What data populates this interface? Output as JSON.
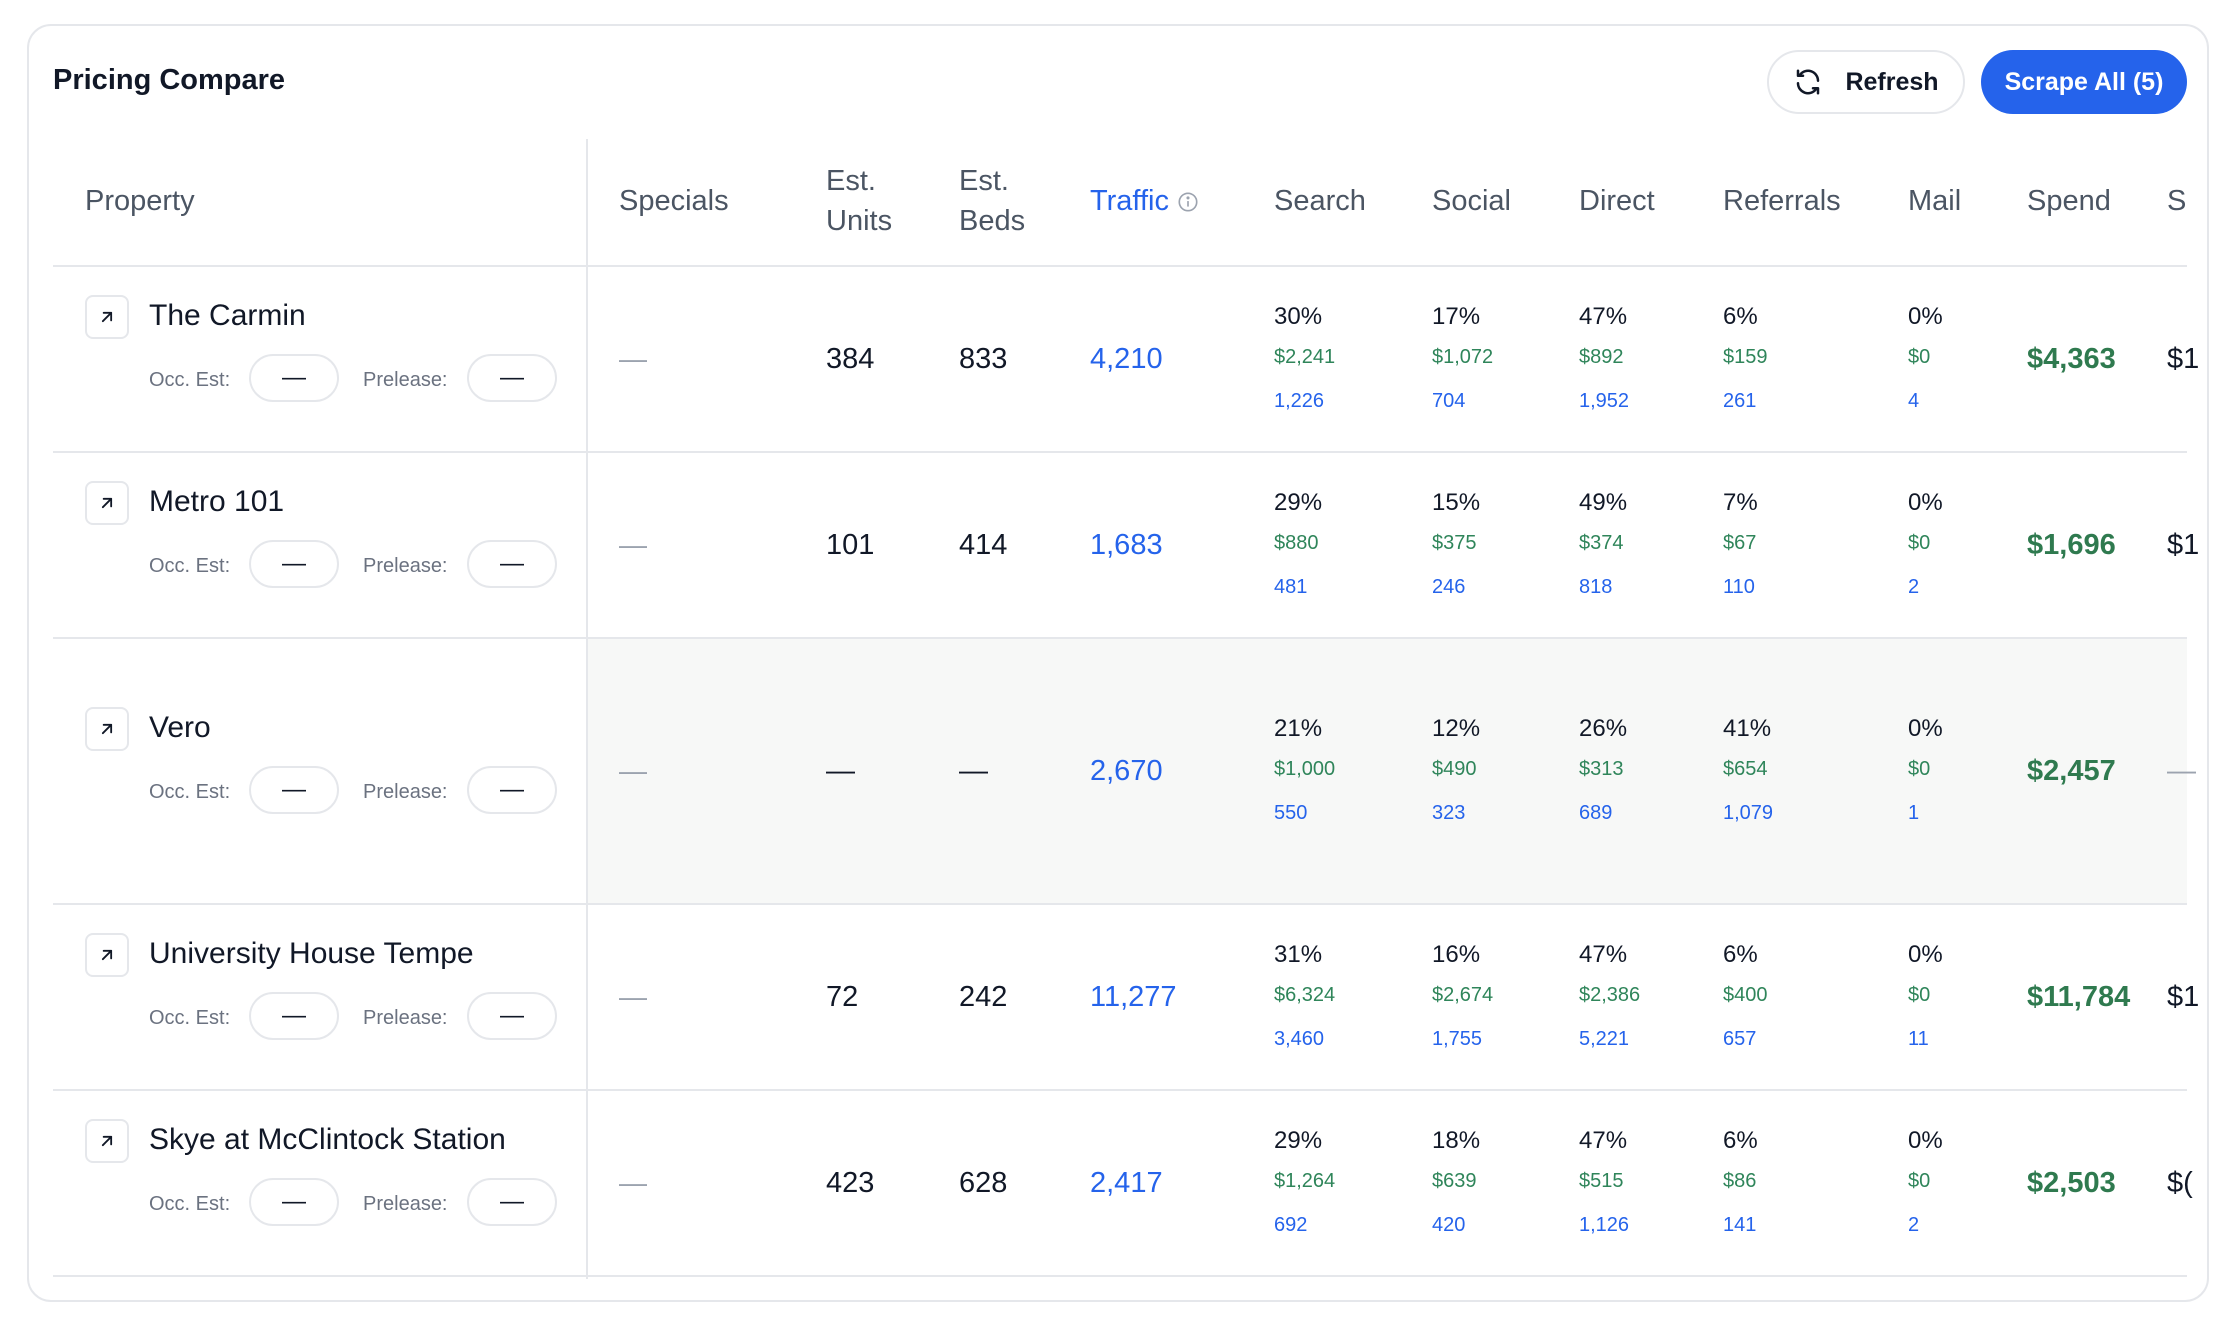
{
  "card": {
    "title": "Pricing Compare",
    "refresh_label": "Refresh",
    "scrape_label": "Scrape All (5)"
  },
  "columns": {
    "property": "Property",
    "specials": "Specials",
    "est_units": [
      "Est.",
      "Units"
    ],
    "est_beds": [
      "Est.",
      "Beds"
    ],
    "traffic": "Traffic",
    "search": "Search",
    "social": "Social",
    "direct": "Direct",
    "referrals": "Referrals",
    "mail": "Mail",
    "spend": "Spend",
    "extra": "S"
  },
  "labels": {
    "occ": "Occ. Est:",
    "prelease": "Prelease:",
    "empty": "—"
  },
  "rows": [
    {
      "name": "The Carmin",
      "specials": "—",
      "units": "384",
      "beds": "833",
      "traffic": "4,210",
      "channels": [
        {
          "pct": "30%",
          "spend": "$2,241",
          "traffic": "1,226"
        },
        {
          "pct": "17%",
          "spend": "$1,072",
          "traffic": "704"
        },
        {
          "pct": "47%",
          "spend": "$892",
          "traffic": "1,952"
        },
        {
          "pct": "6%",
          "spend": "$159",
          "traffic": "261"
        },
        {
          "pct": "0%",
          "spend": "$0",
          "traffic": "4"
        }
      ],
      "spend": "$4,363",
      "extra": "$1"
    },
    {
      "name": "Metro 101",
      "specials": "—",
      "units": "101",
      "beds": "414",
      "traffic": "1,683",
      "channels": [
        {
          "pct": "29%",
          "spend": "$880",
          "traffic": "481"
        },
        {
          "pct": "15%",
          "spend": "$375",
          "traffic": "246"
        },
        {
          "pct": "49%",
          "spend": "$374",
          "traffic": "818"
        },
        {
          "pct": "7%",
          "spend": "$67",
          "traffic": "110"
        },
        {
          "pct": "0%",
          "spend": "$0",
          "traffic": "2"
        }
      ],
      "spend": "$1,696",
      "extra": "$1"
    },
    {
      "name": "Vero",
      "specials": "—",
      "units": "—",
      "beds": "—",
      "traffic": "2,670",
      "channels": [
        {
          "pct": "21%",
          "spend": "$1,000",
          "traffic": "550"
        },
        {
          "pct": "12%",
          "spend": "$490",
          "traffic": "323"
        },
        {
          "pct": "26%",
          "spend": "$313",
          "traffic": "689"
        },
        {
          "pct": "41%",
          "spend": "$654",
          "traffic": "1,079"
        },
        {
          "pct": "0%",
          "spend": "$0",
          "traffic": "1"
        }
      ],
      "spend": "$2,457",
      "extra": "—"
    },
    {
      "name": "University House Tempe",
      "specials": "—",
      "units": "72",
      "beds": "242",
      "traffic": "11,277",
      "channels": [
        {
          "pct": "31%",
          "spend": "$6,324",
          "traffic": "3,460"
        },
        {
          "pct": "16%",
          "spend": "$2,674",
          "traffic": "1,755"
        },
        {
          "pct": "47%",
          "spend": "$2,386",
          "traffic": "5,221"
        },
        {
          "pct": "6%",
          "spend": "$400",
          "traffic": "657"
        },
        {
          "pct": "0%",
          "spend": "$0",
          "traffic": "11"
        }
      ],
      "spend": "$11,784",
      "extra": "$1"
    },
    {
      "name": "Skye at McClintock Station",
      "specials": "—",
      "units": "423",
      "beds": "628",
      "traffic": "2,417",
      "channels": [
        {
          "pct": "29%",
          "spend": "$1,264",
          "traffic": "692"
        },
        {
          "pct": "18%",
          "spend": "$639",
          "traffic": "420"
        },
        {
          "pct": "47%",
          "spend": "$515",
          "traffic": "1,126"
        },
        {
          "pct": "6%",
          "spend": "$86",
          "traffic": "141"
        },
        {
          "pct": "0%",
          "spend": "$0",
          "traffic": "2"
        }
      ],
      "spend": "$2,503",
      "extra": "$("
    }
  ]
}
